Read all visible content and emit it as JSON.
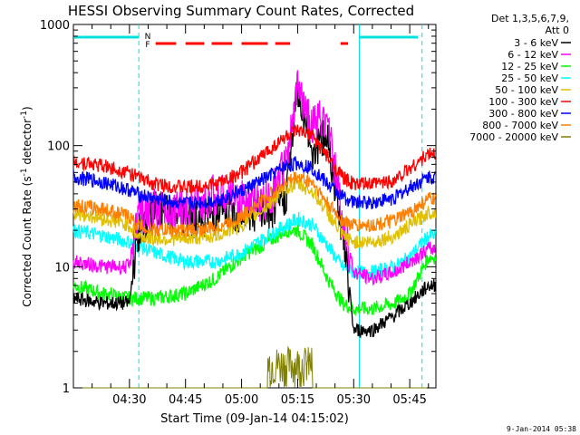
{
  "chart_data": {
    "type": "line",
    "title": "HESSI Observing Summary Count Rates, Corrected",
    "xlabel": "Start Time (09-Jan-14 04:15:02)",
    "ylabel": "Corrected Count Rate (s-1 detector-1)",
    "ylabel_parts": {
      "pre": "Corrected Count Rate (s",
      "sup1": "-1",
      "mid": " detector",
      "sup2": "-1",
      "post": ")"
    },
    "y_scale": "log",
    "ylim": [
      1,
      1000
    ],
    "xlim_minutes": [
      0,
      97
    ],
    "y_ticks": [
      "1",
      "10",
      "100",
      "1000"
    ],
    "x_ticks": [
      {
        "label": "04:30",
        "minute": 15
      },
      {
        "label": "04:45",
        "minute": 30
      },
      {
        "label": "05:00",
        "minute": 45
      },
      {
        "label": "05:15",
        "minute": 60
      },
      {
        "label": "05:30",
        "minute": 75
      },
      {
        "label": "05:45",
        "minute": 90
      }
    ],
    "legend_header": [
      "Det 1,3,5,6,7,9,",
      "Att 0"
    ],
    "legend_placement": "right, outside plot",
    "series": [
      {
        "name": "3 - 6 keV",
        "color": "#000000"
      },
      {
        "name": "6 - 12 keV",
        "color": "#ff00ff"
      },
      {
        "name": "12 - 25 keV",
        "color": "#00ff00"
      },
      {
        "name": "25 - 50 keV",
        "color": "#00ffff"
      },
      {
        "name": "50 - 100 keV",
        "color": "#e0c000"
      },
      {
        "name": "100 - 300 keV",
        "color": "#ff0000"
      },
      {
        "name": "300 - 800 keV",
        "color": "#0000ff"
      },
      {
        "name": "800 - 7000 keV",
        "color": "#ff8000"
      },
      {
        "name": "7000 - 20000 keV",
        "color": "#808000"
      }
    ],
    "approx_points": {
      "times": [
        0,
        8,
        15,
        17,
        22,
        30,
        38,
        45,
        52,
        57,
        60,
        64,
        68,
        72,
        75,
        80,
        86,
        90,
        95
      ],
      "3 - 6 keV": [
        5.5,
        5,
        5,
        18,
        30,
        25,
        27,
        28,
        27,
        40,
        300,
        90,
        120,
        20,
        3,
        3,
        4,
        5,
        7
      ],
      "6 - 12 keV": [
        11,
        10,
        10,
        25,
        30,
        30,
        40,
        35,
        35,
        70,
        300,
        150,
        170,
        25,
        9,
        8,
        9,
        11,
        14
      ],
      "12 - 25 keV": [
        7,
        6,
        5.5,
        5.5,
        5.5,
        6,
        8,
        12,
        16,
        20,
        20,
        15,
        8,
        5,
        4.5,
        4.5,
        5,
        6,
        12
      ],
      "25 - 50 keV": [
        20,
        18,
        16,
        15,
        13,
        11,
        11,
        13,
        18,
        22,
        25,
        22,
        15,
        10,
        9,
        9,
        10,
        12,
        18
      ],
      "50 - 100 keV": [
        28,
        25,
        22,
        18,
        17,
        17,
        18,
        22,
        32,
        45,
        48,
        42,
        28,
        18,
        16,
        16,
        18,
        22,
        28
      ],
      "100 - 300 keV": [
        75,
        68,
        60,
        55,
        48,
        45,
        48,
        60,
        90,
        120,
        130,
        120,
        80,
        55,
        48,
        48,
        52,
        65,
        85
      ],
      "300 - 800 keV": [
        55,
        50,
        43,
        40,
        36,
        33,
        35,
        42,
        55,
        68,
        72,
        65,
        48,
        38,
        34,
        34,
        37,
        45,
        55
      ],
      "800 - 7000 keV": [
        32,
        30,
        26,
        22,
        20,
        20,
        21,
        26,
        38,
        50,
        55,
        50,
        33,
        24,
        22,
        22,
        24,
        28,
        36
      ],
      "7000 - 20000 keV": [
        1,
        1,
        1,
        1,
        1,
        1,
        1,
        1,
        1,
        1.8,
        2.5,
        2,
        1,
        1,
        1,
        1,
        1,
        1,
        1
      ]
    },
    "annotations": {
      "attenuator_state_letter": "N",
      "flag_letter": "F",
      "timestamp": "9-Jan-2014 05:38"
    }
  },
  "colors": {
    "accent_cyan": "#00e0e0",
    "flag_red": "#ff0000",
    "axis": "#000000",
    "background": "#ffffff"
  }
}
